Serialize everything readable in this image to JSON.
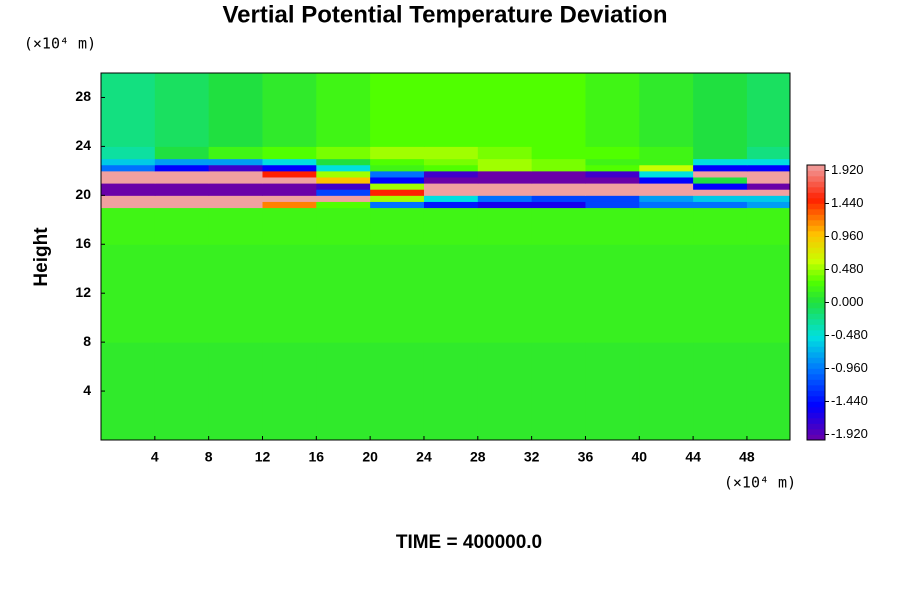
{
  "chart_data": {
    "type": "heatmap",
    "title": "Vertial Potential Temperature Deviation",
    "y_label": "Height",
    "x_unit": "(×10⁴ m)",
    "y_unit": "(×10⁴ m)",
    "footer": "TIME = 400000.0",
    "xlim": [
      0,
      51.2
    ],
    "ylim": [
      0,
      30
    ],
    "xticks": [
      4,
      8,
      12,
      16,
      20,
      24,
      28,
      32,
      36,
      40,
      44,
      48
    ],
    "yticks": [
      4,
      8,
      12,
      16,
      20,
      24,
      28
    ],
    "x_edges": [
      0,
      4,
      8,
      12,
      16,
      20,
      24,
      28,
      32,
      36,
      40,
      44,
      48,
      51.2
    ],
    "y_edges": [
      0,
      8,
      16,
      19,
      19.5,
      20,
      20.5,
      21,
      21.5,
      22,
      22.5,
      23,
      24,
      30
    ],
    "z": [
      [
        0.1,
        0.1,
        0.1,
        0.1,
        0.1,
        0.1,
        0.1,
        0.1,
        0.1,
        0.1,
        0.1,
        0.1,
        0.1
      ],
      [
        0.15,
        0.15,
        0.15,
        0.15,
        0.15,
        0.15,
        0.15,
        0.15,
        0.15,
        0.15,
        0.15,
        0.15,
        0.15
      ],
      [
        0.2,
        0.2,
        0.2,
        0.2,
        0.2,
        0.2,
        0.2,
        0.2,
        0.2,
        0.2,
        0.2,
        0.2,
        0.2
      ],
      [
        2,
        2,
        2,
        1.2,
        0.3,
        -1,
        -1.4,
        -1.6,
        -1.6,
        -1.2,
        -1,
        -1,
        -0.8
      ],
      [
        2,
        2,
        2,
        2,
        2,
        0.5,
        -0.5,
        -1,
        -1.2,
        -1.2,
        -0.8,
        -0.6,
        -0.6
      ],
      [
        -2,
        -2,
        -2,
        -2,
        -1.2,
        1.5,
        2,
        2,
        2,
        2,
        2,
        2,
        2
      ],
      [
        -2,
        -2,
        -2,
        -2,
        -1.8,
        0.5,
        2,
        2,
        2,
        2,
        2,
        -1.5,
        -2
      ],
      [
        2,
        2,
        2,
        2,
        1,
        -1.5,
        -2,
        -2,
        -2,
        -2,
        -1.5,
        0,
        2
      ],
      [
        2,
        2,
        2,
        1.5,
        0.5,
        -1,
        -1.8,
        -2,
        -2,
        -1.8,
        -0.5,
        2,
        2
      ],
      [
        -1,
        -1.5,
        -1.8,
        -1.5,
        -0.5,
        0.2,
        0.3,
        0.5,
        0.4,
        0.3,
        0.6,
        -1.5,
        -1.5
      ],
      [
        -0.6,
        -0.8,
        -0.8,
        -0.5,
        0,
        0.3,
        0.4,
        0.5,
        0.4,
        0.2,
        0.2,
        -0.5,
        -0.5
      ],
      [
        -0.3,
        0,
        0.2,
        0.3,
        0.4,
        0.5,
        0.5,
        0.4,
        0.3,
        0.3,
        0.2,
        0,
        -0.2
      ],
      [
        -0.2,
        -0.1,
        0,
        0.1,
        0.2,
        0.3,
        0.3,
        0.3,
        0.3,
        0.2,
        0.1,
        0,
        -0.1
      ]
    ],
    "clim": [
      -2,
      2
    ],
    "cticks": [
      {
        "value": 1.92,
        "label": "1.920"
      },
      {
        "value": 1.44,
        "label": "1.440"
      },
      {
        "value": 0.96,
        "label": "0.960"
      },
      {
        "value": 0.48,
        "label": "0.480"
      },
      {
        "value": 0,
        "label": "0.000"
      },
      {
        "value": -0.48,
        "label": "-0.480"
      },
      {
        "value": -0.96,
        "label": "-0.960"
      },
      {
        "value": -1.44,
        "label": "-1.440"
      },
      {
        "value": -1.92,
        "label": "-1.920"
      }
    ],
    "colormap": [
      [
        -2,
        "#6a00a8"
      ],
      [
        -1.5,
        "#0000ff"
      ],
      [
        -1,
        "#0070ff"
      ],
      [
        -0.5,
        "#00e0e0"
      ],
      [
        0,
        "#20e040"
      ],
      [
        0.3,
        "#50ff00"
      ],
      [
        0.6,
        "#c8ff00"
      ],
      [
        1,
        "#ffc000"
      ],
      [
        1.5,
        "#ff2000"
      ],
      [
        2,
        "#f0a0a0"
      ]
    ]
  }
}
